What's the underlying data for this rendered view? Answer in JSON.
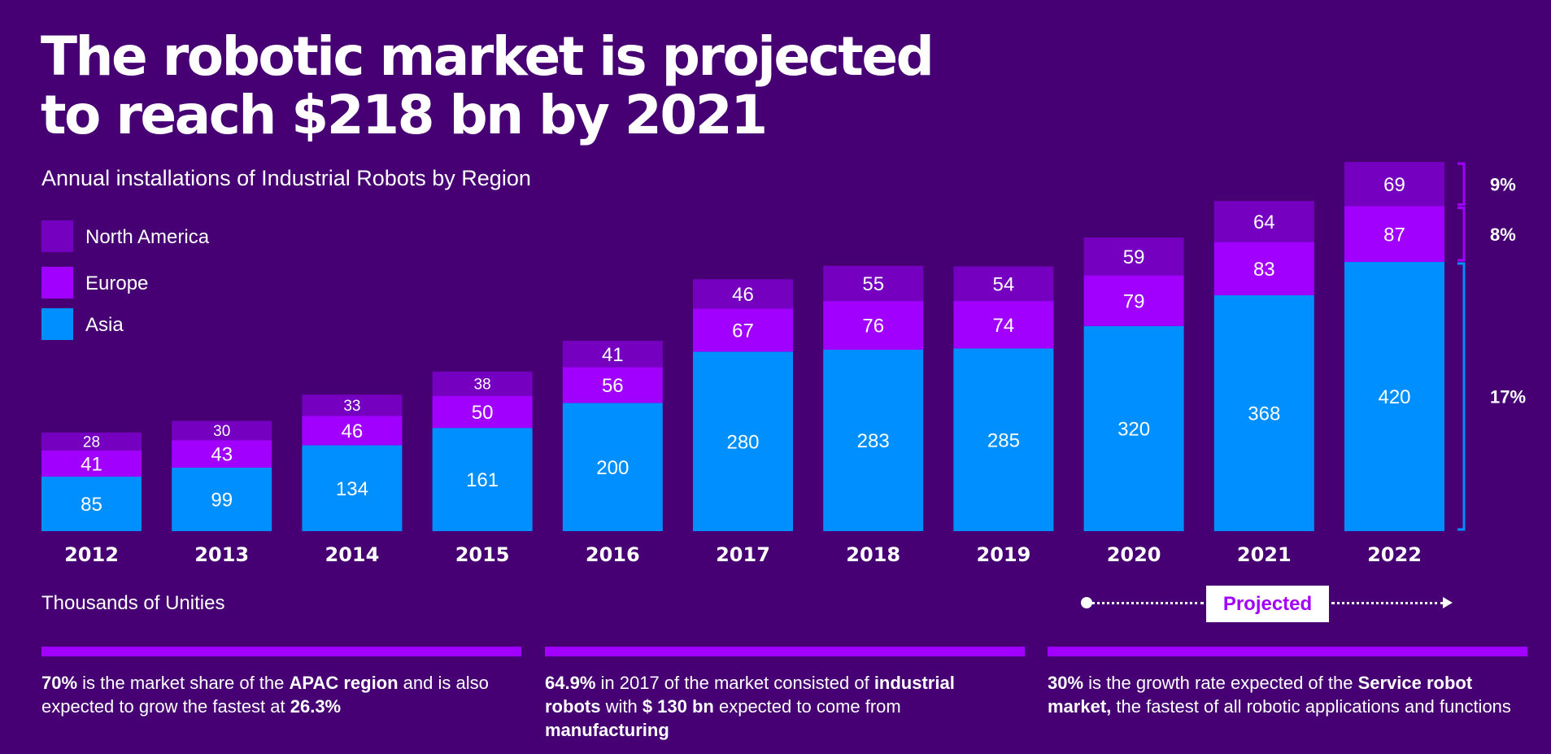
{
  "title_line1": "The robotic market is projected",
  "title_line2": "to reach $218 bn by 2021",
  "subtitle": "Annual installations of Industrial Robots by Region",
  "legend": [
    {
      "label": "North America",
      "color": "#7500c0"
    },
    {
      "label": "Europe",
      "color": "#a100ff"
    },
    {
      "label": "Asia",
      "color": "#008fff"
    }
  ],
  "units_label": "Thousands of Unities",
  "projected_label": "Projected",
  "chart_data": {
    "type": "bar",
    "stacked": true,
    "categories": [
      "2012",
      "2013",
      "2014",
      "2015",
      "2016",
      "2017",
      "2018",
      "2019",
      "2020",
      "2021",
      "2022"
    ],
    "series": [
      {
        "name": "Asia",
        "color": "#008fff",
        "values": [
          85,
          99,
          134,
          161,
          200,
          280,
          283,
          285,
          320,
          368,
          420
        ]
      },
      {
        "name": "Europe",
        "color": "#a100ff",
        "values": [
          41,
          43,
          46,
          50,
          56,
          67,
          76,
          74,
          79,
          83,
          87
        ]
      },
      {
        "name": "North America",
        "color": "#7500c0",
        "values": [
          28,
          30,
          33,
          38,
          41,
          46,
          55,
          54,
          59,
          64,
          69
        ]
      }
    ],
    "growth_labels": [
      {
        "series": "North America",
        "label": "9%"
      },
      {
        "series": "Europe",
        "label": "8%"
      },
      {
        "series": "Asia",
        "label": "17%"
      }
    ],
    "projected_from": "2020"
  },
  "facts": [
    {
      "parts": [
        {
          "text": "70%",
          "bold": true
        },
        {
          "text": "  is the market share of the ",
          "bold": false
        },
        {
          "text": "APAC region",
          "bold": true
        },
        {
          "text": " and is also expected to grow the fastest at ",
          "bold": false
        },
        {
          "text": "26.3%",
          "bold": true
        }
      ]
    },
    {
      "parts": [
        {
          "text": "64.9%",
          "bold": true
        },
        {
          "text": " in 2017 of the market consisted of ",
          "bold": false
        },
        {
          "text": "industrial robots",
          "bold": true
        },
        {
          "text": " with ",
          "bold": false
        },
        {
          "text": "$ 130 bn",
          "bold": true
        },
        {
          "text": " expected to come from ",
          "bold": false
        },
        {
          "text": "manufacturing",
          "bold": true
        }
      ]
    },
    {
      "parts": [
        {
          "text": "30%",
          "bold": true
        },
        {
          "text": "  is the growth rate expected of the ",
          "bold": false
        },
        {
          "text": "Service robot market,",
          "bold": true
        },
        {
          "text": " the fastest of all robotic applications and functions",
          "bold": false
        }
      ]
    }
  ]
}
